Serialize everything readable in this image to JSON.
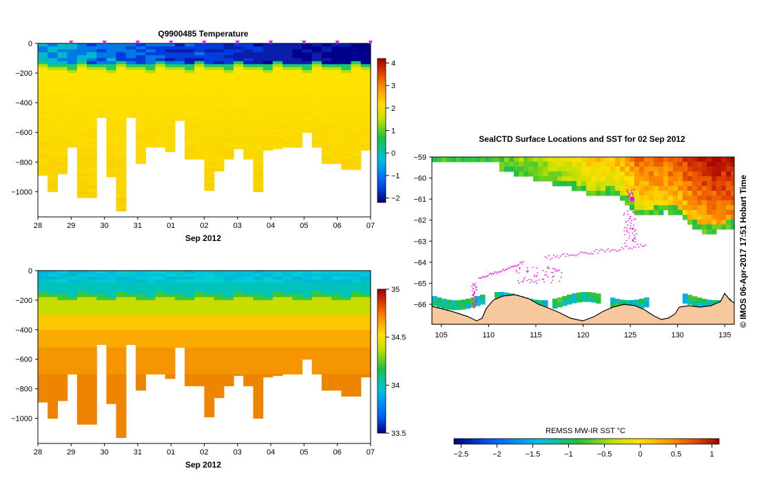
{
  "chart_data": [
    {
      "type": "heatmap",
      "title": "Q9900485  Temperature",
      "xlabel": "Sep 2012",
      "ylabel": "",
      "x_tick_labels": [
        "28",
        "29",
        "30",
        "31",
        "01",
        "02",
        "03",
        "04",
        "05",
        "06",
        "07"
      ],
      "x_days": [
        28,
        29,
        30,
        31,
        32,
        33,
        34,
        35,
        36,
        37,
        38
      ],
      "xlim": [
        28,
        38
      ],
      "ylim": [
        -1170,
        0
      ],
      "y_ticks": [
        0,
        -200,
        -400,
        -600,
        -800,
        -1000
      ],
      "y_tick_labels": [
        "0",
        "−200",
        "−400",
        "−600",
        "−800",
        "−1000"
      ],
      "profile_days": [
        28.0,
        28.3,
        28.6,
        28.9,
        29.2,
        29.5,
        29.8,
        30.1,
        30.4,
        30.7,
        31.0,
        31.3,
        31.6,
        31.9,
        32.2,
        32.5,
        32.8,
        33.1,
        33.4,
        33.7,
        34.0,
        34.3,
        34.6,
        34.9,
        35.2,
        35.5,
        35.8,
        36.1,
        36.4,
        36.7,
        37.0,
        37.3,
        37.6,
        37.9
      ],
      "profile_max_depth": [
        -890,
        -1000,
        -880,
        -700,
        -1040,
        -1040,
        -500,
        -900,
        -1130,
        -500,
        -810,
        -700,
        -700,
        -730,
        -520,
        -780,
        -780,
        -990,
        -860,
        -780,
        -710,
        -780,
        -1000,
        -720,
        -710,
        -700,
        -700,
        -600,
        -700,
        -810,
        -810,
        -850,
        -850,
        -720
      ],
      "colorbar": {
        "label": "",
        "ticks": [
          4,
          3,
          2,
          1,
          0,
          -1,
          -2
        ],
        "tick_labels": [
          "4",
          "3",
          "2",
          "1",
          "0",
          "−1",
          "−2"
        ],
        "range": [
          -2.2,
          4.2
        ]
      }
    },
    {
      "type": "heatmap",
      "title": "",
      "xlabel": "Sep 2012",
      "ylabel": "",
      "x_tick_labels": [
        "28",
        "29",
        "30",
        "31",
        "01",
        "02",
        "03",
        "04",
        "05",
        "06",
        "07"
      ],
      "x_days": [
        28,
        29,
        30,
        31,
        32,
        33,
        34,
        35,
        36,
        37,
        38
      ],
      "xlim": [
        28,
        38
      ],
      "ylim": [
        -1170,
        0
      ],
      "y_ticks": [
        0,
        -200,
        -400,
        -600,
        -800,
        -1000
      ],
      "y_tick_labels": [
        "0",
        "−200",
        "−400",
        "−600",
        "−800",
        "−1000"
      ],
      "colorbar": {
        "label": "",
        "ticks": [
          35,
          34.5,
          34,
          33.5
        ],
        "tick_labels": [
          "35",
          "34.5",
          "34",
          "33.5"
        ],
        "range": [
          33.5,
          35
        ]
      }
    },
    {
      "type": "heatmap",
      "title": "SealCTD Surface Locations and SST for 02 Sep 2012",
      "xlabel": "",
      "ylabel": "",
      "x_ticks": [
        105,
        110,
        115,
        120,
        125,
        130,
        135
      ],
      "x_tick_labels": [
        "105",
        "110",
        "115",
        "120",
        "125",
        "130",
        "135"
      ],
      "xlim": [
        104,
        136
      ],
      "y_ticks": [
        -59,
        -60,
        -61,
        -62,
        -63,
        -64,
        -65,
        -66
      ],
      "y_tick_labels": [
        "−59",
        "−60",
        "−61",
        "−62",
        "−63",
        "−64",
        "−65",
        "−66"
      ],
      "ylim": [
        -66.95,
        -59
      ],
      "colorbar": {
        "label": "REMSS MW-IR SST °C",
        "ticks": [
          -2.5,
          -2,
          -1.5,
          -1,
          -0.5,
          0,
          0.5,
          1
        ],
        "tick_labels": [
          "−2.5",
          "−2",
          "−1.5",
          "−1",
          "−0.5",
          "0",
          "0.5",
          "1"
        ],
        "range": [
          -2.6,
          1.1
        ]
      },
      "credit": "©  IMOS 06-Apr-2017 17:51 Hobart Time"
    }
  ],
  "colors": {
    "land": "#f7c79d",
    "missing": "#ffffff",
    "track": "#ff00ff"
  }
}
